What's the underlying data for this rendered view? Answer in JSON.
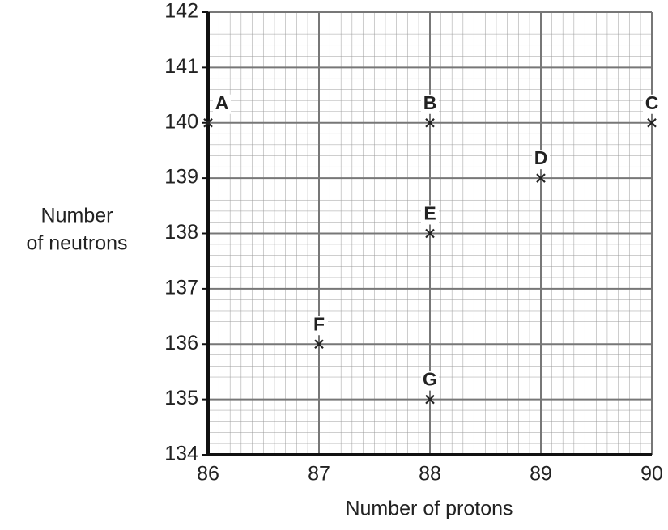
{
  "chart_data": {
    "type": "scatter",
    "xlabel": "Number of protons",
    "ylabel": [
      "Number",
      "of neutrons"
    ],
    "x": [
      86,
      88,
      90,
      89,
      88,
      87,
      88
    ],
    "values": [
      140,
      140,
      140,
      139,
      138,
      136,
      135
    ],
    "labels": [
      "A",
      "B",
      "C",
      "D",
      "E",
      "F",
      "G"
    ],
    "xlim": [
      86,
      90
    ],
    "ylim": [
      134,
      142
    ],
    "xticks": [
      86,
      87,
      88,
      89,
      90
    ],
    "yticks": [
      134,
      135,
      136,
      137,
      138,
      139,
      140,
      141,
      142
    ],
    "grid": true,
    "color": "#222222"
  }
}
